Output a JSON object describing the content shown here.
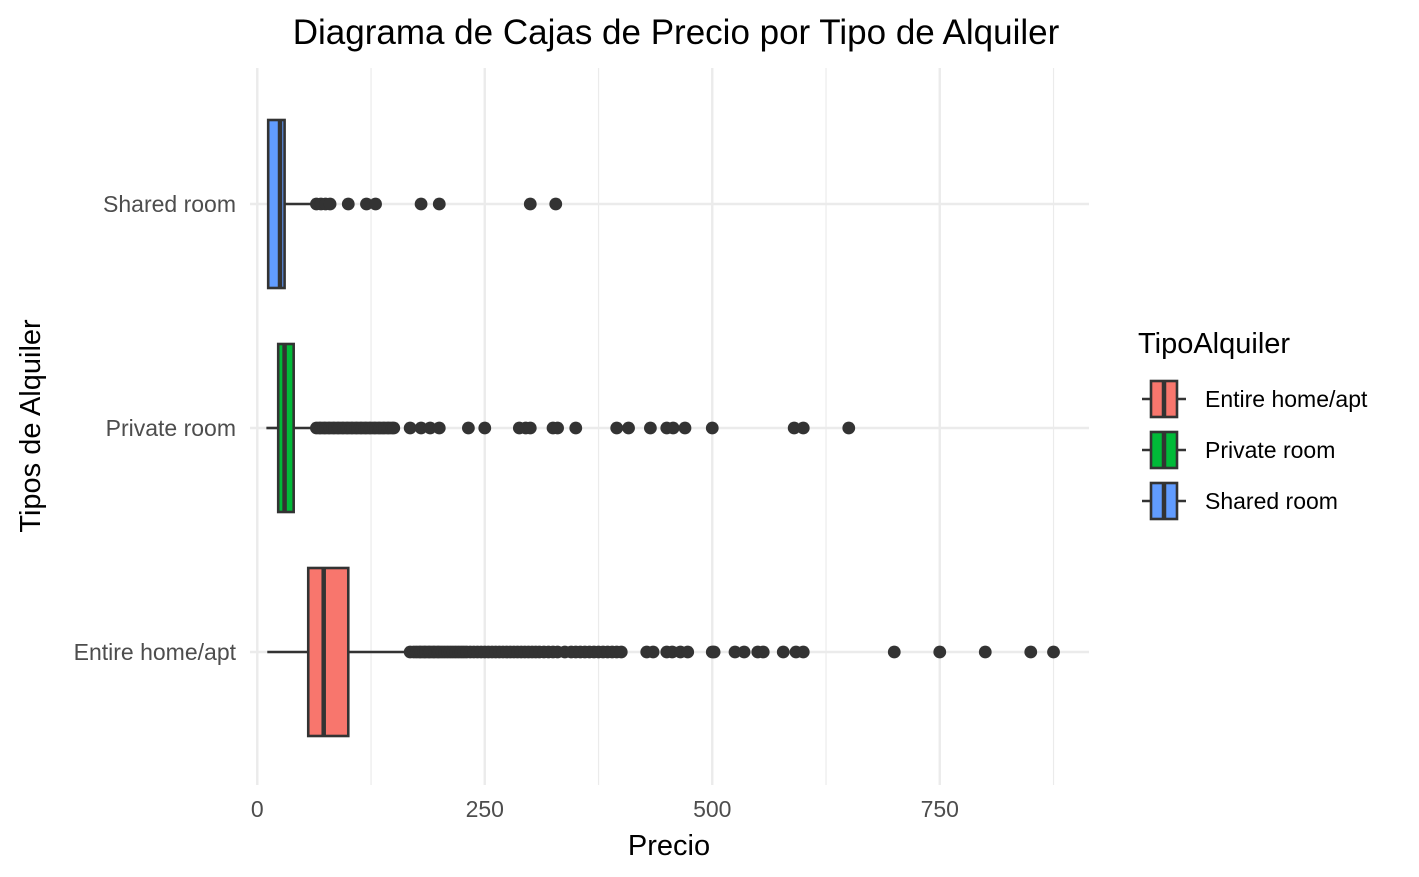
{
  "chart_data": {
    "type": "boxplot",
    "orientation": "horizontal",
    "title": "Diagrama de Cajas de Precio por Tipo de Alquiler",
    "xlabel": "Precio",
    "ylabel": "Tipos de Alquiler",
    "xlim": [
      -8,
      914
    ],
    "x_ticks": [
      0,
      250,
      500,
      750
    ],
    "x_tick_labels": [
      "0",
      "250",
      "500",
      "750"
    ],
    "x_minor_ticks": [
      125,
      375,
      625,
      875
    ],
    "grid": true,
    "legend": {
      "title": "TipoAlquiler",
      "position": "right",
      "entries": [
        "Entire home/apt",
        "Private room",
        "Shared room"
      ]
    },
    "categories": [
      "Entire home/apt",
      "Private room",
      "Shared room"
    ],
    "series": [
      {
        "name": "Entire home/apt",
        "color": "#F8766D",
        "whisker_low": 11,
        "q1": 56,
        "median": 73,
        "q3": 100,
        "whisker_high": 165,
        "outliers": [
          168,
          172,
          175,
          178,
          180,
          183,
          185,
          188,
          190,
          193,
          195,
          198,
          200,
          203,
          206,
          209,
          212,
          215,
          218,
          221,
          224,
          227,
          230,
          234,
          238,
          242,
          246,
          250,
          254,
          258,
          262,
          266,
          270,
          274,
          278,
          282,
          286,
          290,
          294,
          298,
          302,
          306,
          310,
          315,
          320,
          325,
          330,
          338,
          345,
          350,
          355,
          360,
          365,
          370,
          375,
          380,
          385,
          390,
          395,
          400,
          428,
          435,
          450,
          456,
          465,
          473,
          500,
          502,
          525,
          535,
          550,
          556,
          578,
          592,
          600,
          700,
          750,
          800,
          850,
          875
        ]
      },
      {
        "name": "Private room",
        "color": "#00BA38",
        "whisker_low": 10,
        "q1": 23,
        "median": 30,
        "q3": 40,
        "whisker_high": 62,
        "outliers": [
          65,
          68,
          70,
          73,
          75,
          78,
          80,
          83,
          85,
          88,
          90,
          93,
          95,
          98,
          100,
          103,
          105,
          108,
          110,
          113,
          115,
          118,
          120,
          123,
          125,
          128,
          130,
          133,
          135,
          138,
          140,
          143,
          145,
          148,
          150,
          168,
          180,
          190,
          200,
          232,
          250,
          288,
          295,
          300,
          325,
          330,
          350,
          395,
          408,
          432,
          450,
          457,
          470,
          500,
          590,
          600,
          650
        ]
      },
      {
        "name": "Shared room",
        "color": "#619CFF",
        "whisker_low": 12,
        "q1": 12,
        "median": 25,
        "q3": 30,
        "whisker_high": 60,
        "outliers": [
          65,
          70,
          75,
          80,
          100,
          120,
          130,
          180,
          200,
          300,
          328
        ]
      }
    ]
  }
}
